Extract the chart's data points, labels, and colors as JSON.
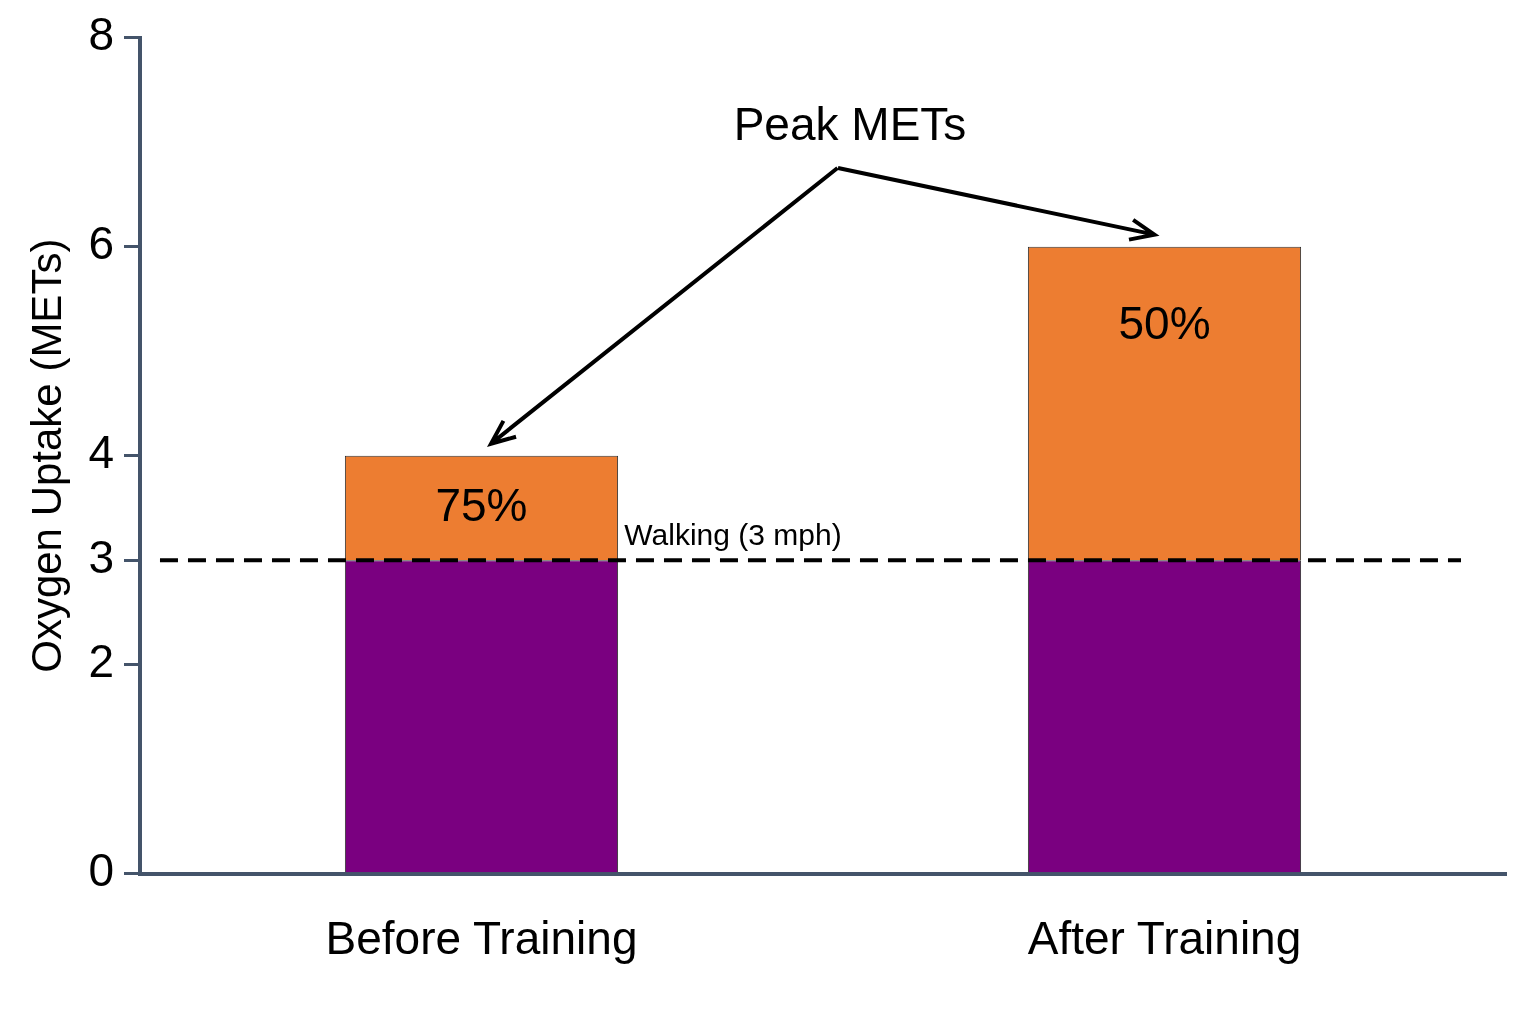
{
  "chart_data": {
    "type": "bar",
    "stacked": true,
    "ylabel": "Oxygen Uptake (METs)",
    "categories": [
      "Before Training",
      "After Training"
    ],
    "series": [
      {
        "color": "#7a0080",
        "values": [
          3,
          3
        ]
      },
      {
        "color": "#ed7d31",
        "values": [
          1,
          3
        ]
      }
    ],
    "ylim": [
      0,
      8
    ],
    "yticks": [
      0,
      2,
      3,
      4,
      6,
      8
    ],
    "grid": false,
    "legend": false,
    "ref_lines": [
      {
        "axis": "y",
        "value": 3,
        "label": "Walking (3 mph)",
        "color": "#000000",
        "line_style": "dashed"
      }
    ],
    "annotations": [
      "Peak METs",
      "75%",
      "50%"
    ]
  }
}
